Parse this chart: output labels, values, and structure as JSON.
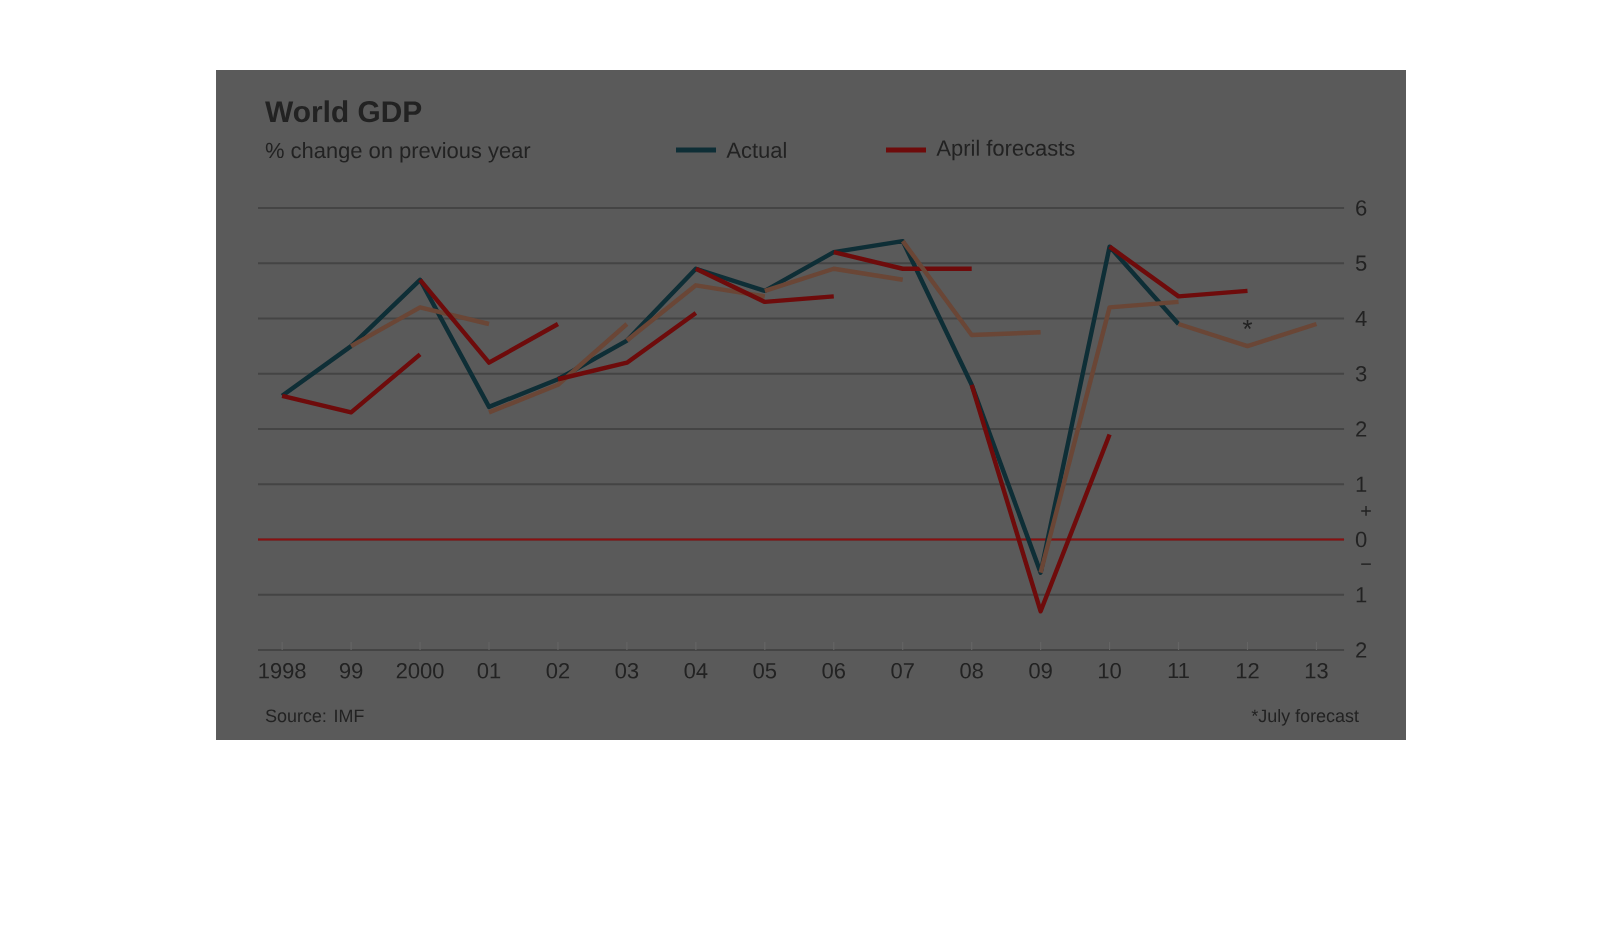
{
  "chart_data": {
    "type": "line",
    "title": "World GDP",
    "subtitle": "% change on previous year",
    "xlim": [
      1997.65,
      2013.4
    ],
    "ylim": [
      -2,
      6
    ],
    "xticks": [
      {
        "value": 1998,
        "label": "1998"
      },
      {
        "value": 1999,
        "label": "99"
      },
      {
        "value": 2000,
        "label": "2000"
      },
      {
        "value": 2001,
        "label": "01"
      },
      {
        "value": 2002,
        "label": "02"
      },
      {
        "value": 2003,
        "label": "03"
      },
      {
        "value": 2004,
        "label": "04"
      },
      {
        "value": 2005,
        "label": "05"
      },
      {
        "value": 2006,
        "label": "06"
      },
      {
        "value": 2007,
        "label": "07"
      },
      {
        "value": 2008,
        "label": "08"
      },
      {
        "value": 2009,
        "label": "09"
      },
      {
        "value": 2010,
        "label": "10"
      },
      {
        "value": 2011,
        "label": "11"
      },
      {
        "value": 2012,
        "label": "12"
      },
      {
        "value": 2013,
        "label": "13"
      }
    ],
    "yticks": [
      {
        "value": -2,
        "label": "2"
      },
      {
        "value": -1,
        "label": "1"
      },
      0,
      1,
      2,
      3,
      4,
      5,
      6
    ],
    "grid": "y",
    "legend": "top",
    "marker": "none",
    "line_style": "solid",
    "ref_lines": [
      {
        "axis": "y",
        "value": 0,
        "color": "#8a1010"
      }
    ],
    "annotations": [
      "Source: IMF",
      "*July forecast",
      "+",
      "−",
      {
        "text": "*",
        "x": 2012,
        "y": 3.5
      }
    ],
    "series": [
      {
        "name": "Actual",
        "color": "#0e2e36",
        "x": [
          1998,
          1999,
          2000,
          2001,
          2002,
          2003,
          2004,
          2005,
          2006,
          2007,
          2008,
          2009,
          2010,
          2011
        ],
        "values": [
          2.6,
          3.5,
          4.7,
          2.4,
          2.9,
          3.6,
          4.9,
          4.5,
          5.2,
          5.4,
          2.8,
          -0.6,
          5.3,
          3.9
        ]
      },
      {
        "name": "April forecasts",
        "color": "#6e0b0b",
        "x": [
          1998,
          1999,
          2000
        ],
        "values": [
          2.6,
          2.3,
          3.35
        ]
      },
      {
        "color": "#6a4636",
        "x": [
          1999,
          2000,
          2001
        ],
        "values": [
          3.5,
          4.2,
          3.9
        ]
      },
      {
        "color": "#6e0b0b",
        "x": [
          2000,
          2001,
          2002
        ],
        "values": [
          4.7,
          3.2,
          3.9
        ]
      },
      {
        "color": "#6a4636",
        "x": [
          2001,
          2002,
          2003
        ],
        "values": [
          2.3,
          2.8,
          3.9
        ]
      },
      {
        "color": "#6e0b0b",
        "x": [
          2002,
          2003,
          2004
        ],
        "values": [
          2.9,
          3.2,
          4.1
        ]
      },
      {
        "color": "#6a4636",
        "x": [
          2003,
          2004,
          2005
        ],
        "values": [
          3.6,
          4.6,
          4.4
        ]
      },
      {
        "color": "#6e0b0b",
        "x": [
          2004,
          2005,
          2006
        ],
        "values": [
          4.9,
          4.3,
          4.4
        ]
      },
      {
        "color": "#6a4636",
        "x": [
          2005,
          2006,
          2007
        ],
        "values": [
          4.5,
          4.9,
          4.7
        ]
      },
      {
        "color": "#6e0b0b",
        "x": [
          2006,
          2007,
          2008
        ],
        "values": [
          5.2,
          4.9,
          4.9
        ]
      },
      {
        "color": "#6a4636",
        "x": [
          2007,
          2008,
          2009
        ],
        "values": [
          5.4,
          3.7,
          3.75
        ]
      },
      {
        "color": "#6e0b0b",
        "x": [
          2008,
          2009,
          2010
        ],
        "values": [
          2.8,
          -1.3,
          1.9
        ]
      },
      {
        "color": "#6a4636",
        "x": [
          2009,
          2010,
          2011
        ],
        "values": [
          -0.6,
          4.2,
          4.3
        ]
      },
      {
        "color": "#6e0b0b",
        "x": [
          2010,
          2011,
          2012
        ],
        "values": [
          5.3,
          4.4,
          4.5
        ]
      },
      {
        "color": "#6a4636",
        "x": [
          2011,
          2012,
          2013
        ],
        "values": [
          3.9,
          3.5,
          3.9
        ]
      }
    ]
  }
}
